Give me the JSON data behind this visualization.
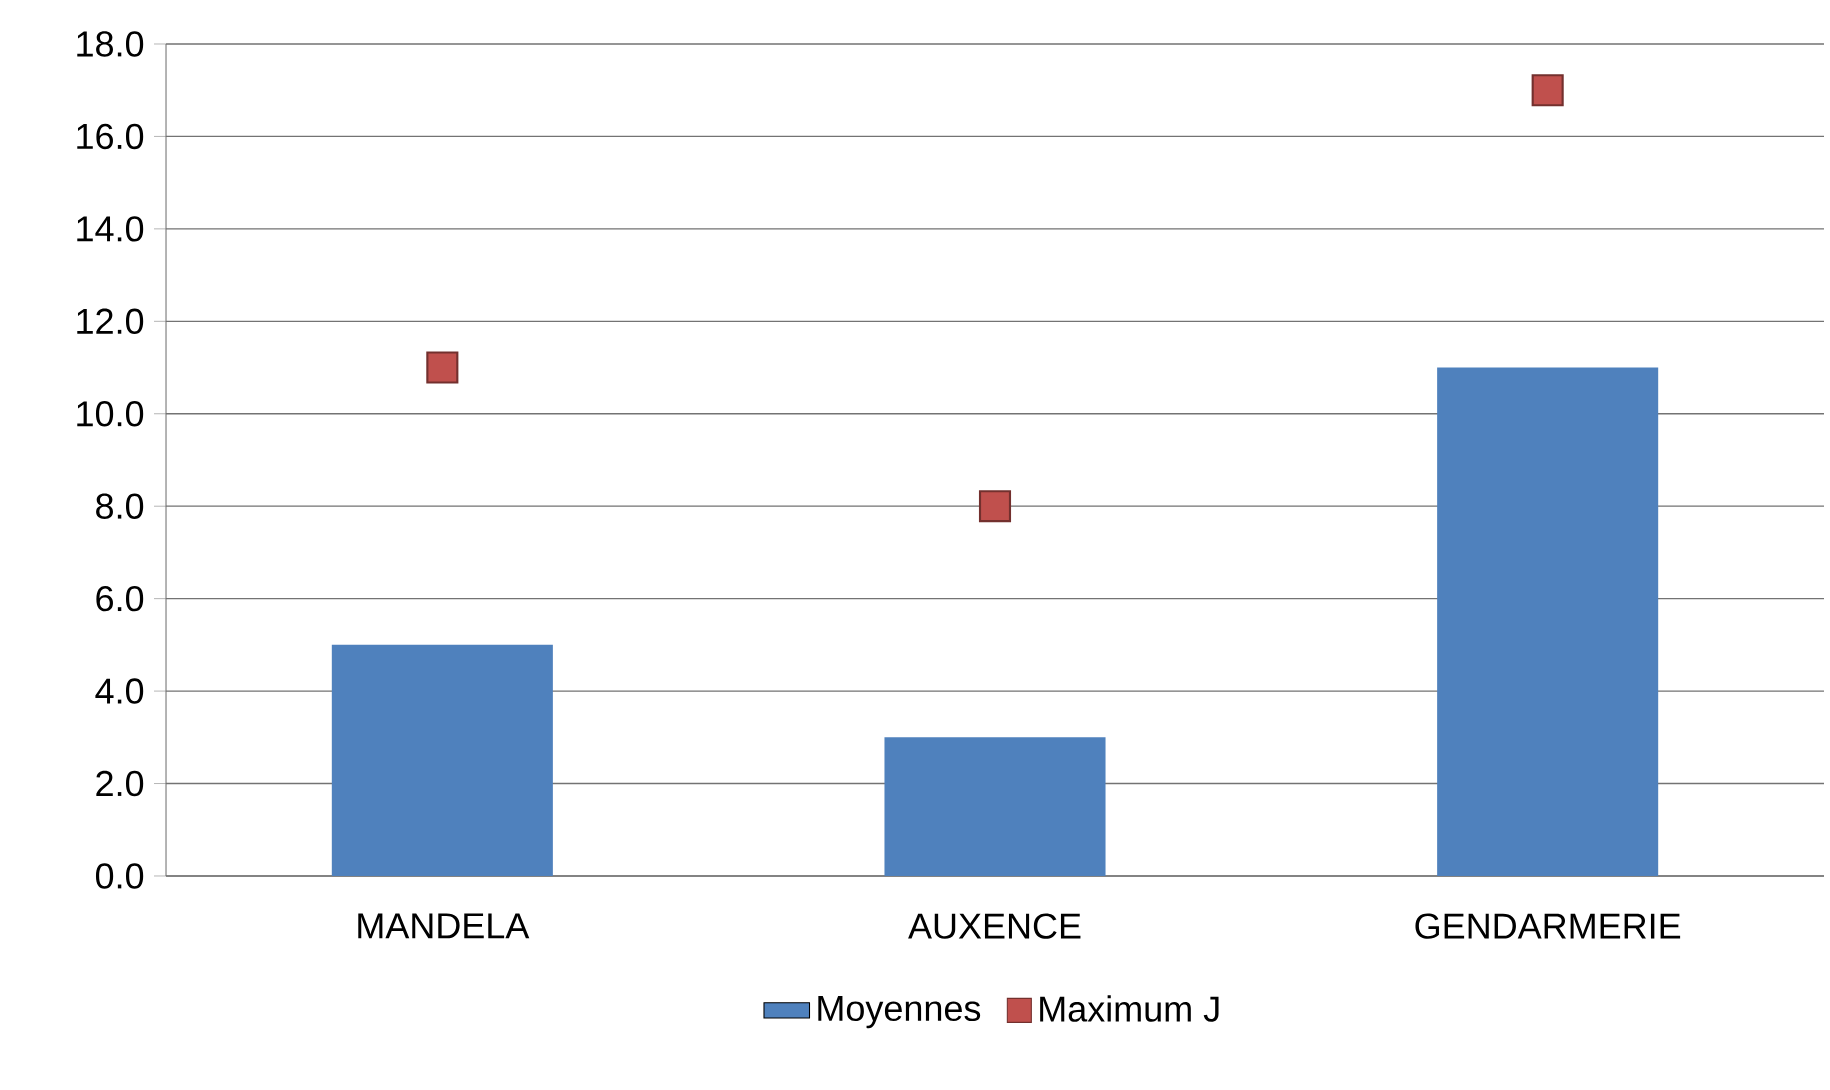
{
  "chart_data": {
    "type": "bar",
    "categories": [
      "MANDELA",
      "AUXENCE",
      "GENDARMERIE"
    ],
    "series": [
      {
        "name": "Moyennes",
        "color": "#4f81bd",
        "values": [
          5.0,
          3.0,
          11.0
        ]
      },
      {
        "name": "Maximum J",
        "type": "scatter",
        "marker": "square",
        "color": "#c0504d",
        "values": [
          11.0,
          8.0,
          17.0
        ]
      }
    ],
    "ylim": [
      0,
      18
    ],
    "yticks": [
      {
        "value": 0,
        "label": "0.0"
      },
      {
        "value": 2,
        "label": "2.0"
      },
      {
        "value": 4,
        "label": "4.0"
      },
      {
        "value": 6,
        "label": "6.0"
      },
      {
        "value": 8,
        "label": "8.0"
      },
      {
        "value": 10,
        "label": "10.0"
      },
      {
        "value": 12,
        "label": "12.0"
      },
      {
        "value": 14,
        "label": "14.0"
      },
      {
        "value": 16,
        "label": "16.0"
      },
      {
        "value": 18,
        "label": "18.0"
      }
    ],
    "grid": "y",
    "legend": "bottom"
  }
}
